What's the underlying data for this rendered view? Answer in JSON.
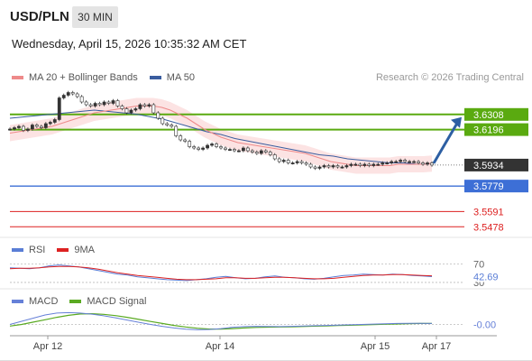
{
  "header": {
    "symbol": "USD/PLN",
    "timeframe": "30 MIN",
    "timestamp": "Wednesday, April 15, 2026 10:35:32 AM CET",
    "copyright": "Research © 2026 Trading Central"
  },
  "legend": {
    "ma20": "MA 20 + Bollinger Bands",
    "ma50": "MA 50",
    "rsi": "RSI",
    "rsi_ma": "9MA",
    "macd": "MACD",
    "macd_signal": "MACD Signal"
  },
  "colors": {
    "ma20": "#ee8a8a",
    "ma50": "#3a5d9f",
    "rsi": "#5a7ed6",
    "rsi_ma": "#dd2222",
    "macd": "#6680d8",
    "macd_signal": "#5aaa22",
    "resistance": "#5aaa10",
    "support": "#3d6fd6",
    "support_lower": "#dd2020",
    "price_tag": "#333333",
    "arrow": "#2d5fa3"
  },
  "chart_data": {
    "type": "candlestick",
    "ylim": [
      3.542,
      3.652
    ],
    "x_labels": [
      "Apr 12",
      "Apr 14",
      "Apr 15",
      "Apr 17"
    ],
    "last_price": {
      "value": 3.5934,
      "label": "3.5934"
    },
    "levels": [
      {
        "value": 3.6308,
        "label": "3.6308",
        "kind": "resistance"
      },
      {
        "value": 3.6196,
        "label": "3.6196",
        "kind": "resistance"
      },
      {
        "value": 3.5779,
        "label": "3.5779",
        "kind": "support"
      },
      {
        "value": 3.5591,
        "label": "3.5591",
        "kind": "support_lower"
      },
      {
        "value": 3.5478,
        "label": "3.5478",
        "kind": "support_lower"
      }
    ],
    "close": [
      3.62,
      3.621,
      3.622,
      3.619,
      3.62,
      3.623,
      3.622,
      3.621,
      3.624,
      3.625,
      3.627,
      3.643,
      3.645,
      3.647,
      3.646,
      3.644,
      3.64,
      3.638,
      3.637,
      3.639,
      3.638,
      3.64,
      3.639,
      3.641,
      3.637,
      3.635,
      3.632,
      3.634,
      3.635,
      3.638,
      3.637,
      3.638,
      3.632,
      3.628,
      3.624,
      3.623,
      3.622,
      3.615,
      3.612,
      3.611,
      3.607,
      3.606,
      3.605,
      3.606,
      3.608,
      3.609,
      3.607,
      3.606,
      3.605,
      3.605,
      3.604,
      3.604,
      3.606,
      3.604,
      3.603,
      3.602,
      3.604,
      3.603,
      3.601,
      3.598,
      3.596,
      3.597,
      3.595,
      3.595,
      3.596,
      3.595,
      3.594,
      3.592,
      3.591,
      3.592,
      3.593,
      3.592,
      3.593,
      3.592,
      3.592,
      3.593,
      3.594,
      3.594,
      3.593,
      3.594,
      3.593,
      3.594,
      3.594,
      3.595,
      3.595,
      3.596,
      3.596,
      3.597,
      3.596,
      3.596,
      3.596,
      3.595,
      3.594,
      3.595,
      3.5934
    ],
    "ma20": [
      3.617,
      3.618,
      3.619,
      3.62,
      3.621,
      3.622,
      3.624,
      3.626,
      3.628,
      3.63,
      3.632,
      3.633,
      3.634,
      3.635,
      3.636,
      3.637,
      3.637,
      3.637,
      3.636,
      3.634,
      3.631,
      3.628,
      3.624,
      3.62,
      3.617,
      3.614,
      3.612,
      3.61,
      3.609,
      3.608,
      3.607,
      3.606,
      3.605,
      3.604,
      3.603,
      3.602,
      3.6,
      3.598,
      3.596,
      3.595,
      3.594,
      3.593,
      3.593,
      3.593,
      3.593,
      3.593,
      3.594,
      3.594,
      3.594,
      3.594,
      3.5945
    ],
    "ma50": [
      3.628,
      3.629,
      3.63,
      3.631,
      3.632,
      3.633,
      3.634,
      3.633,
      3.632,
      3.631,
      3.629,
      3.627,
      3.624,
      3.621,
      3.618,
      3.616,
      3.613,
      3.611,
      3.609,
      3.607,
      3.605,
      3.603,
      3.601,
      3.6,
      3.598,
      3.597,
      3.596,
      3.595,
      3.595,
      3.594,
      3.5945
    ],
    "rsi": {
      "level_labels": [
        "70",
        "42.69",
        "30"
      ],
      "ylim": [
        20,
        85
      ],
      "rsi_values": [
        62,
        61,
        60,
        62,
        66,
        68,
        66,
        64,
        60,
        56,
        52,
        48,
        46,
        42,
        40,
        38,
        36,
        35,
        34,
        36,
        38,
        41,
        43,
        40,
        38,
        39,
        42,
        44,
        41,
        40,
        38,
        37,
        39,
        42,
        45,
        46,
        48,
        47,
        46,
        48,
        47,
        45,
        44,
        42.69
      ],
      "ma_values": [
        60,
        61,
        61,
        62,
        64,
        65,
        65,
        64,
        62,
        59,
        55,
        51,
        48,
        45,
        43,
        41,
        39,
        37,
        36,
        36,
        37,
        38,
        40,
        40,
        39,
        39,
        40,
        41,
        41,
        40,
        39,
        38,
        38,
        39,
        41,
        43,
        45,
        46,
        46,
        47,
        47,
        46,
        45,
        44.5
      ]
    },
    "macd": {
      "zero_label": "-0.00",
      "ylim": [
        -0.006,
        0.01
      ],
      "macd_values": [
        0.0,
        0.002,
        0.004,
        0.006,
        0.0072,
        0.0075,
        0.0072,
        0.0065,
        0.0055,
        0.0042,
        0.0028,
        0.0014,
        0.0,
        -0.0012,
        -0.0022,
        -0.003,
        -0.0034,
        -0.0032,
        -0.0026,
        -0.0018,
        -0.0014,
        -0.0012,
        -0.0013,
        -0.0014,
        -0.0012,
        -0.001,
        -0.0008,
        -0.0006,
        -0.0004,
        -0.0002,
        0.0,
        0.0002,
        0.0004,
        0.0006,
        0.0007,
        0.0007,
        0.0006
      ],
      "signal_values": [
        -0.001,
        0.0,
        0.0015,
        0.003,
        0.0045,
        0.0058,
        0.0066,
        0.0068,
        0.0064,
        0.0056,
        0.0045,
        0.0032,
        0.0019,
        0.0006,
        -0.0006,
        -0.0016,
        -0.0024,
        -0.0029,
        -0.0029,
        -0.0026,
        -0.0022,
        -0.0019,
        -0.0017,
        -0.0016,
        -0.0015,
        -0.0013,
        -0.0011,
        -0.0009,
        -0.0007,
        -0.0005,
        -0.0003,
        -0.0001,
        0.0001,
        0.0003,
        0.0005,
        0.0006,
        0.0006
      ]
    }
  }
}
